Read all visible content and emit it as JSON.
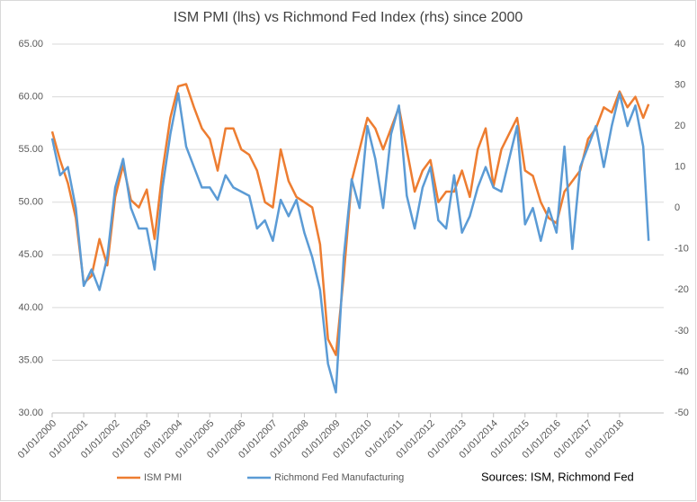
{
  "chart_data": {
    "type": "line",
    "title": "ISM PMI (lhs) vs Richmond Fed Index (rhs) since 2000",
    "annotation": "Sources: ISM, Richmond Fed",
    "x": [
      2000,
      2000.25,
      2000.5,
      2000.75,
      2001,
      2001.25,
      2001.5,
      2001.75,
      2002,
      2002.25,
      2002.5,
      2002.75,
      2003,
      2003.25,
      2003.5,
      2003.75,
      2004,
      2004.25,
      2004.5,
      2004.75,
      2005,
      2005.25,
      2005.5,
      2005.75,
      2006,
      2006.25,
      2006.5,
      2006.75,
      2007,
      2007.25,
      2007.5,
      2007.75,
      2008,
      2008.25,
      2008.5,
      2008.75,
      2009,
      2009.25,
      2009.5,
      2009.75,
      2010,
      2010.25,
      2010.5,
      2010.75,
      2011,
      2011.25,
      2011.5,
      2011.75,
      2012,
      2012.25,
      2012.5,
      2012.75,
      2013,
      2013.25,
      2013.5,
      2013.75,
      2014,
      2014.25,
      2014.5,
      2014.75,
      2015,
      2015.25,
      2015.5,
      2015.75,
      2016,
      2016.25,
      2016.5,
      2016.75,
      2017,
      2017.25,
      2017.5,
      2017.75,
      2018,
      2018.25,
      2018.5,
      2018.75,
      2018.92
    ],
    "series": [
      {
        "name": "ISM PMI",
        "color": "#ed7d31",
        "axis": "y",
        "values": [
          56.7,
          54.0,
          51.8,
          48.5,
          42.3,
          43.0,
          46.5,
          44.0,
          50.5,
          53.5,
          50.2,
          49.5,
          51.2,
          46.5,
          53.0,
          58.0,
          61.0,
          61.2,
          59.0,
          57.0,
          56.0,
          53.0,
          57.0,
          57.0,
          55.0,
          54.5,
          53.0,
          50.0,
          49.5,
          55.0,
          52.0,
          50.5,
          50.0,
          49.5,
          46.0,
          37.0,
          35.5,
          43.0,
          52.0,
          55.0,
          58.0,
          57.0,
          55.0,
          57.0,
          59.0,
          55.0,
          51.0,
          53.0,
          54.0,
          50.0,
          51.0,
          51.0,
          53.0,
          50.5,
          55.0,
          57.0,
          51.5,
          55.0,
          56.5,
          58.0,
          53.0,
          52.5,
          50.0,
          48.5,
          48.0,
          51.0,
          52.0,
          53.0,
          56.0,
          57.0,
          59.0,
          58.5,
          60.5,
          59.0,
          60.0,
          58.0,
          59.3
        ]
      },
      {
        "name": "Richmond Fed Manufacturing",
        "color": "#5b9bd5",
        "axis": "y2",
        "values": [
          17,
          8,
          10,
          0,
          -19,
          -15,
          -20,
          -12,
          5,
          12,
          0,
          -5,
          -5,
          -15,
          5,
          18,
          28,
          15,
          10,
          5,
          5,
          2,
          8,
          5,
          4,
          3,
          -5,
          -3,
          -8,
          2,
          -2,
          2,
          -6,
          -12,
          -20,
          -38,
          -45,
          -12,
          7,
          0,
          20,
          12,
          0,
          18,
          25,
          3,
          -5,
          5,
          10,
          -3,
          -5,
          8,
          -6,
          -2,
          5,
          10,
          5,
          4,
          12,
          20,
          -4,
          0,
          -8,
          0,
          -6,
          15,
          -10,
          10,
          15,
          20,
          10,
          20,
          28,
          20,
          25,
          15,
          -8
        ]
      }
    ],
    "xlim": [
      2000,
      2019.4
    ],
    "xticks": [
      {
        "value": 2000,
        "label": "01/01/2000"
      },
      {
        "value": 2001,
        "label": "01/01/2001"
      },
      {
        "value": 2002,
        "label": "01/01/2002"
      },
      {
        "value": 2003,
        "label": "01/01/2003"
      },
      {
        "value": 2004,
        "label": "01/01/2004"
      },
      {
        "value": 2005,
        "label": "01/01/2005"
      },
      {
        "value": 2006,
        "label": "01/01/2006"
      },
      {
        "value": 2007,
        "label": "01/01/2007"
      },
      {
        "value": 2008,
        "label": "01/01/2008"
      },
      {
        "value": 2009,
        "label": "01/01/2009"
      },
      {
        "value": 2010,
        "label": "01/01/2010"
      },
      {
        "value": 2011,
        "label": "01/01/2011"
      },
      {
        "value": 2012,
        "label": "01/01/2012"
      },
      {
        "value": 2013,
        "label": "01/01/2013"
      },
      {
        "value": 2014,
        "label": "01/01/2014"
      },
      {
        "value": 2015,
        "label": "01/01/2015"
      },
      {
        "value": 2016,
        "label": "01/01/2016"
      },
      {
        "value": 2017,
        "label": "01/01/2017"
      },
      {
        "value": 2018,
        "label": "01/01/2018"
      }
    ],
    "ylim": [
      30,
      65
    ],
    "yticks": [
      {
        "value": 30,
        "label": "30.00"
      },
      {
        "value": 35,
        "label": "35.00"
      },
      {
        "value": 40,
        "label": "40.00"
      },
      {
        "value": 45,
        "label": "45.00"
      },
      {
        "value": 50,
        "label": "50.00"
      },
      {
        "value": 55,
        "label": "55.00"
      },
      {
        "value": 60,
        "label": "60.00"
      },
      {
        "value": 65,
        "label": "65.00"
      }
    ],
    "y2lim": [
      -50,
      40
    ],
    "y2ticks": [
      -50,
      -40,
      -30,
      -20,
      -10,
      0,
      10,
      20,
      30,
      40
    ],
    "grid": true
  }
}
